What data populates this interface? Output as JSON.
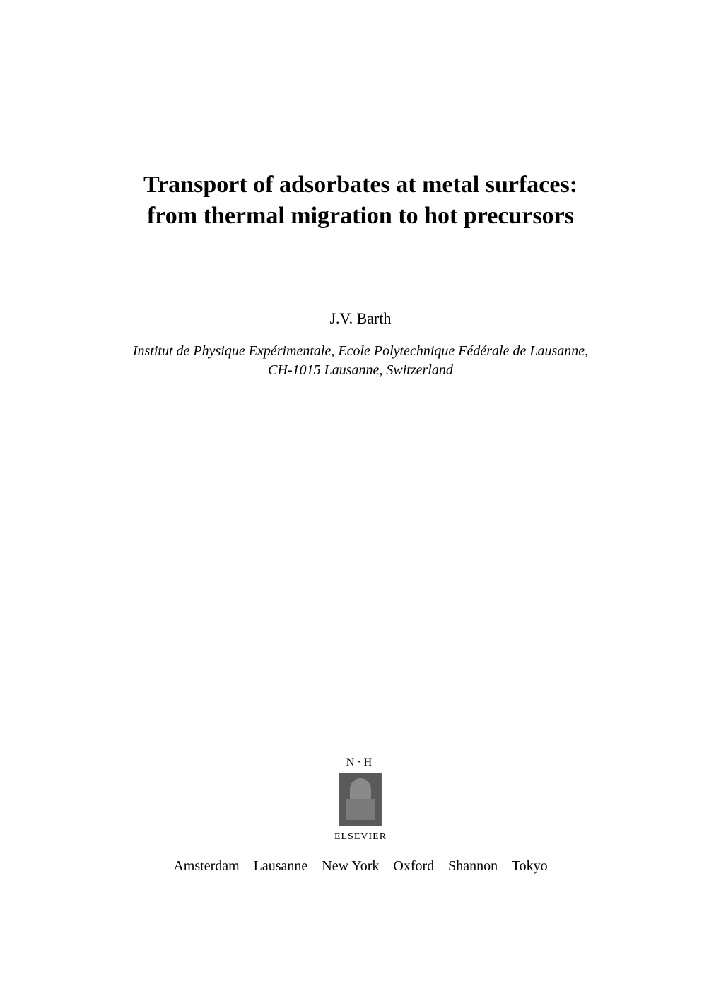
{
  "title": {
    "line1": "Transport of adsorbates at metal surfaces:",
    "line2": "from thermal migration to hot precursors"
  },
  "author": "J.V. Barth",
  "affiliation": {
    "line1": "Institut de Physique Expérimentale, Ecole Polytechnique Fédérale de Lausanne,",
    "line2": "CH-1015 Lausanne, Switzerland"
  },
  "publisher": {
    "nh_label": "N·H",
    "name": "ELSEVIER",
    "locations": "Amsterdam – Lausanne – New York – Oxford – Shannon – Tokyo"
  },
  "styles": {
    "background_color": "#ffffff",
    "text_color": "#000000",
    "title_fontsize": 34,
    "author_fontsize": 22,
    "affiliation_fontsize": 20,
    "locations_fontsize": 20,
    "font_family": "Times New Roman"
  }
}
